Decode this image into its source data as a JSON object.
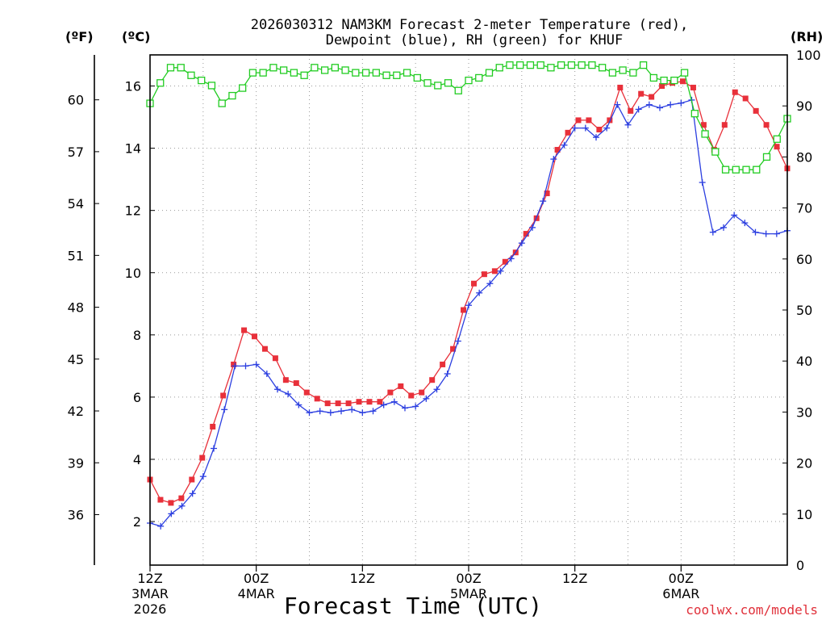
{
  "chart_data": {
    "type": "line",
    "title_line1": "2026030312 NAM3KM Forecast 2-meter Temperature (red),",
    "title_line2": "Dewpoint (blue), RH (green) for KHUF",
    "xlabel": "Forecast Time (UTC)",
    "credit": "coolwx.com/models",
    "units": {
      "fahrenheit": "(ºF)",
      "celsius": "(ºC)",
      "rh": "(RH)"
    },
    "xlim": [
      0,
      72
    ],
    "ylim_c": [
      0.6,
      17.0
    ],
    "ylim_rh": [
      0,
      100
    ],
    "celsius_ticks": [
      2,
      4,
      6,
      8,
      10,
      12,
      14,
      16
    ],
    "fahrenheit_ticks": [
      36,
      39,
      42,
      45,
      48,
      51,
      54,
      57,
      60
    ],
    "rh_ticks": [
      0,
      10,
      20,
      30,
      40,
      50,
      60,
      70,
      80,
      90,
      100
    ],
    "x_ticks": [
      {
        "h": 0,
        "l1": "12Z",
        "l2": "3MAR",
        "l3": "2026"
      },
      {
        "h": 12,
        "l1": "00Z",
        "l2": "4MAR",
        "l3": ""
      },
      {
        "h": 24,
        "l1": "12Z",
        "l2": "",
        "l3": ""
      },
      {
        "h": 36,
        "l1": "00Z",
        "l2": "5MAR",
        "l3": ""
      },
      {
        "h": 48,
        "l1": "12Z",
        "l2": "",
        "l3": ""
      },
      {
        "h": 60,
        "l1": "00Z",
        "l2": "6MAR",
        "l3": ""
      }
    ],
    "series": [
      {
        "name": "Temperature",
        "units": "C",
        "color": "#e8303a",
        "values": [
          3.35,
          2.7,
          2.6,
          2.75,
          3.35,
          4.05,
          5.05,
          6.05,
          7.05,
          8.15,
          7.95,
          7.55,
          7.25,
          6.55,
          6.45,
          6.15,
          5.95,
          5.8,
          5.8,
          5.8,
          5.85,
          5.85,
          5.85,
          6.15,
          6.35,
          6.05,
          6.15,
          6.55,
          7.05,
          7.55,
          8.8,
          9.65,
          9.95,
          10.05,
          10.35,
          10.65,
          11.25,
          11.75,
          12.55,
          13.95,
          14.5,
          14.9,
          14.9,
          14.6,
          14.9,
          15.95,
          15.2,
          15.75,
          15.65,
          16.0,
          16.1,
          16.15,
          15.95,
          14.75,
          13.95,
          14.75,
          15.8,
          15.6,
          15.2,
          14.75,
          14.05,
          13.35
        ]
      },
      {
        "name": "Dewpoint",
        "units": "C",
        "color": "#2c3fe0",
        "values": [
          1.95,
          1.85,
          2.25,
          2.5,
          2.9,
          3.45,
          4.35,
          5.6,
          7.0,
          7.0,
          7.05,
          6.75,
          6.25,
          6.1,
          5.75,
          5.5,
          5.55,
          5.5,
          5.55,
          5.6,
          5.5,
          5.55,
          5.75,
          5.85,
          5.65,
          5.7,
          5.95,
          6.25,
          6.75,
          7.8,
          8.95,
          9.35,
          9.65,
          10.05,
          10.45,
          10.95,
          11.45,
          12.3,
          13.65,
          14.1,
          14.65,
          14.65,
          14.35,
          14.65,
          15.4,
          14.75,
          15.25,
          15.4,
          15.3,
          15.4,
          15.45,
          15.55,
          12.9,
          11.3,
          11.45,
          11.85,
          11.6,
          11.3,
          11.25,
          11.25,
          11.35
        ]
      },
      {
        "name": "RH",
        "units": "%",
        "color": "#22cc22",
        "values": [
          90.5,
          94.5,
          97.5,
          97.5,
          96.0,
          95.0,
          94.0,
          90.5,
          92.0,
          93.5,
          96.5,
          96.5,
          97.5,
          97.0,
          96.5,
          96.0,
          97.5,
          97.0,
          97.5,
          97.0,
          96.5,
          96.5,
          96.5,
          96.0,
          96.0,
          96.5,
          95.5,
          94.5,
          94.0,
          94.5,
          93.0,
          95.0,
          95.5,
          96.5,
          97.5,
          98.0,
          98.0,
          98.0,
          98.0,
          97.5,
          98.0,
          98.0,
          98.0,
          98.0,
          97.5,
          96.5,
          97.0,
          96.5,
          98.0,
          95.5,
          95.0,
          95.0,
          96.5,
          88.5,
          84.5,
          81.0,
          77.5,
          77.5,
          77.5,
          77.5,
          80.0,
          83.5,
          87.5
        ]
      }
    ]
  }
}
